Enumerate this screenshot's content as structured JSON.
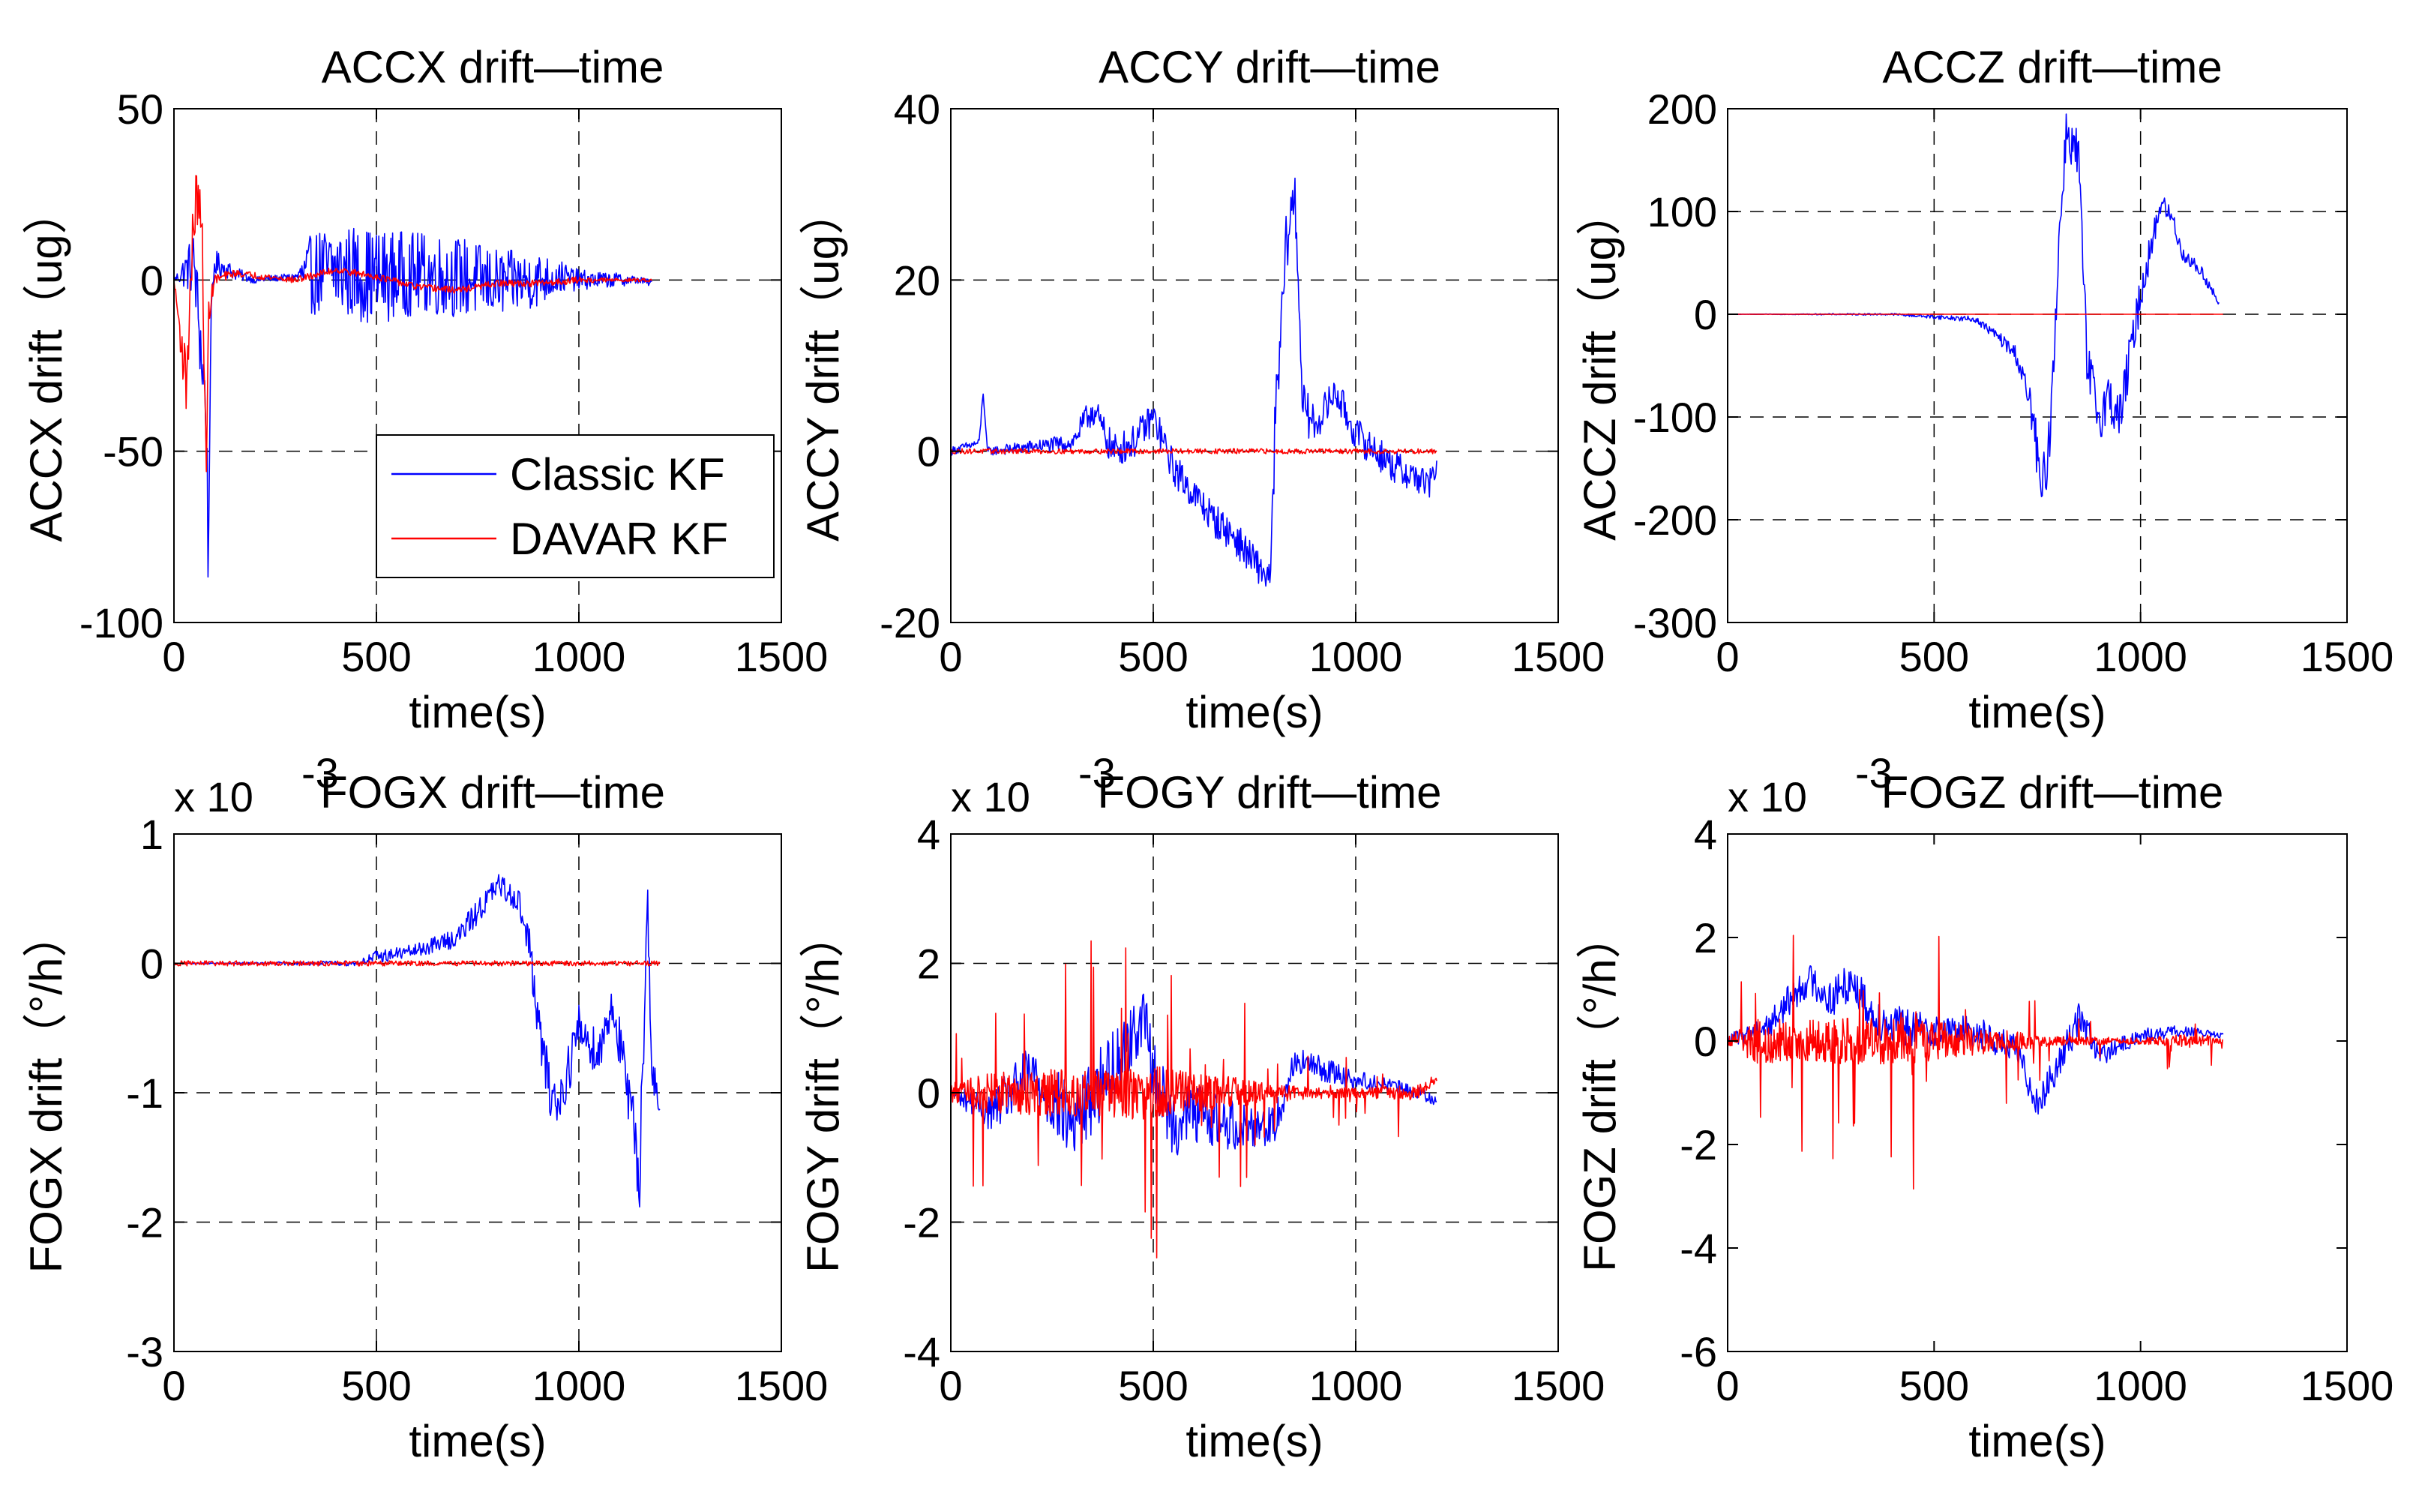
{
  "chart_data": [
    {
      "type": "line",
      "id": "accx",
      "title": "ACCX drift—time",
      "xlabel": "time(s)",
      "ylabel": "ACCX drift（ug）",
      "xlim": [
        0,
        1500
      ],
      "ylim": [
        -100,
        50
      ],
      "xticks": [
        0,
        500,
        1000,
        1500
      ],
      "xtick_labels": [
        "0",
        "500",
        "1000",
        "1500"
      ],
      "yticks": [
        -100,
        -50,
        0,
        50
      ],
      "ytick_labels": [
        "-100",
        "-50",
        "0",
        "50"
      ],
      "grid": true,
      "legend": "lower-right",
      "series": [
        {
          "name": "Classic KF",
          "color": "#0000ff",
          "kind": "noise",
          "x": [
            0,
            50,
            80,
            85,
            90,
            100,
            150,
            200,
            300,
            340,
            400,
            500,
            600,
            700,
            800,
            900,
            950,
            1000,
            1100,
            1150,
            1180
          ],
          "values": [
            0,
            5,
            -40,
            -88,
            -20,
            5,
            2,
            0,
            1,
            2,
            3,
            1,
            2,
            1,
            -1,
            0,
            1,
            0,
            0,
            0,
            -1
          ],
          "amp": [
            0,
            10,
            15,
            10,
            8,
            4,
            2,
            1,
            1,
            12,
            14,
            14,
            12,
            12,
            10,
            8,
            5,
            3,
            2,
            1,
            1
          ]
        },
        {
          "name": "DAVAR KF",
          "color": "#ff0000",
          "kind": "noise",
          "x": [
            0,
            30,
            50,
            60,
            70,
            80,
            85,
            100,
            150,
            300,
            400,
            500,
            600,
            700,
            800,
            900,
            1000,
            1100,
            1180
          ],
          "values": [
            0,
            -30,
            20,
            25,
            10,
            -60,
            -10,
            0,
            2,
            0,
            3,
            1,
            -2,
            -3,
            -1,
            -1,
            0,
            0,
            0
          ],
          "amp": [
            0,
            10,
            10,
            8,
            8,
            6,
            4,
            2,
            1,
            1,
            1,
            1,
            1,
            1,
            1,
            1,
            1,
            0.5,
            0.5
          ]
        }
      ]
    },
    {
      "type": "line",
      "id": "accy",
      "title": "ACCY drift—time",
      "xlabel": "time(s)",
      "ylabel": "ACCY drift（ug）",
      "xlim": [
        0,
        1500
      ],
      "ylim": [
        -20,
        40
      ],
      "xticks": [
        0,
        500,
        1000,
        1500
      ],
      "xtick_labels": [
        "0",
        "500",
        "1000",
        "1500"
      ],
      "yticks": [
        -20,
        0,
        20,
        40
      ],
      "ytick_labels": [
        "-20",
        "0",
        "20",
        "40"
      ],
      "grid": true,
      "series": [
        {
          "name": "Classic KF",
          "color": "#0000ff",
          "kind": "noise",
          "x": [
            0,
            70,
            80,
            90,
            300,
            350,
            400,
            450,
            500,
            550,
            600,
            650,
            700,
            750,
            790,
            800,
            830,
            850,
            870,
            900,
            950,
            1000,
            1100,
            1150,
            1180,
            1200
          ],
          "values": [
            0,
            1,
            7,
            0,
            1,
            5,
            0,
            1,
            4,
            -2,
            -5,
            -8,
            -10,
            -13,
            -15,
            2,
            25,
            30,
            5,
            3,
            7,
            2,
            -2,
            -3,
            -4,
            -2
          ],
          "amp": [
            0.5,
            0.5,
            0.5,
            0.5,
            1,
            2,
            2,
            2,
            2,
            2,
            2,
            2,
            2,
            2,
            2,
            4,
            4,
            3,
            3,
            2,
            2,
            2,
            2,
            2,
            2,
            1
          ]
        },
        {
          "name": "DAVAR KF",
          "color": "#ff0000",
          "kind": "noise",
          "x": [
            0,
            1200
          ],
          "values": [
            0,
            0
          ],
          "amp": [
            0.3,
            0.3
          ]
        }
      ]
    },
    {
      "type": "line",
      "id": "accz",
      "title": "ACCZ drift—time",
      "xlabel": "time(s)",
      "ylabel": "ACCZ drift（ug）",
      "xlim": [
        0,
        1500
      ],
      "ylim": [
        -300,
        200
      ],
      "xticks": [
        0,
        500,
        1000,
        1500
      ],
      "xtick_labels": [
        "0",
        "500",
        "1000",
        "1500"
      ],
      "yticks": [
        -300,
        -200,
        -100,
        0,
        100,
        200
      ],
      "ytick_labels": [
        "-300",
        "-200",
        "-100",
        "0",
        "100",
        "200"
      ],
      "grid": true,
      "series": [
        {
          "name": "Classic KF",
          "color": "#0000ff",
          "kind": "noise",
          "x": [
            0,
            400,
            600,
            650,
            700,
            740,
            760,
            780,
            800,
            820,
            850,
            870,
            900,
            920,
            950,
            1000,
            1050,
            1080,
            1100,
            1150,
            1190
          ],
          "values": [
            0,
            0,
            -5,
            -20,
            -40,
            -100,
            -180,
            -120,
            50,
            180,
            150,
            -50,
            -100,
            -80,
            -100,
            20,
            110,
            90,
            60,
            40,
            10
          ],
          "amp": [
            0,
            1,
            3,
            5,
            10,
            20,
            30,
            25,
            30,
            20,
            30,
            30,
            25,
            25,
            25,
            20,
            10,
            10,
            8,
            6,
            4
          ]
        },
        {
          "name": "DAVAR KF",
          "color": "#ff0000",
          "kind": "noise",
          "x": [
            0,
            1200
          ],
          "values": [
            0,
            0
          ],
          "amp": [
            0,
            0
          ]
        }
      ]
    },
    {
      "type": "line",
      "id": "fogx",
      "title": "FOGX drift—time",
      "xlabel": "time(s)",
      "ylabel": "FOGX drift（°/h）",
      "scale_label": "x 10",
      "scale_exp": "-3",
      "xlim": [
        0,
        1500
      ],
      "ylim": [
        -3,
        1
      ],
      "xticks": [
        0,
        500,
        1000,
        1500
      ],
      "xtick_labels": [
        "0",
        "500",
        "1000",
        "1500"
      ],
      "yticks": [
        -3,
        -2,
        -1,
        0,
        1
      ],
      "ytick_labels": [
        "-3",
        "-2",
        "-1",
        "0",
        "1"
      ],
      "grid": true,
      "series": [
        {
          "name": "Classic KF",
          "color": "#0000ff",
          "kind": "noise",
          "x": [
            0,
            450,
            500,
            600,
            700,
            750,
            800,
            850,
            880,
            900,
            930,
            950,
            1000,
            1050,
            1080,
            1100,
            1150,
            1170,
            1180,
            1200
          ],
          "values": [
            0,
            0,
            0.05,
            0.1,
            0.2,
            0.4,
            0.6,
            0.5,
            0.1,
            -0.5,
            -1.0,
            -1.1,
            -0.5,
            -0.7,
            -0.3,
            -0.6,
            -1.6,
            0.5,
            -0.8,
            -1.2
          ],
          "amp": [
            0,
            0.02,
            0.05,
            0.05,
            0.08,
            0.1,
            0.1,
            0.1,
            0.15,
            0.2,
            0.2,
            0.2,
            0.2,
            0.2,
            0.2,
            0.2,
            0.3,
            0.2,
            0.2,
            0.1
          ]
        },
        {
          "name": "DAVAR KF",
          "color": "#ff0000",
          "kind": "noise",
          "x": [
            0,
            1200
          ],
          "values": [
            0,
            0
          ],
          "amp": [
            0.02,
            0.02
          ]
        }
      ]
    },
    {
      "type": "line",
      "id": "fogy",
      "title": "FOGY drift—time",
      "xlabel": "time(s)",
      "ylabel": "FOGY drift（°/h）",
      "scale_label": "x 10",
      "scale_exp": "-3",
      "xlim": [
        0,
        1500
      ],
      "ylim": [
        -4,
        4
      ],
      "xticks": [
        0,
        500,
        1000,
        1500
      ],
      "xtick_labels": [
        "0",
        "500",
        "1000",
        "1500"
      ],
      "yticks": [
        -4,
        -2,
        0,
        2,
        4
      ],
      "ytick_labels": [
        "-4",
        "-2",
        "0",
        "2",
        "4"
      ],
      "grid": true,
      "series": [
        {
          "name": "Classic KF",
          "color": "#0000ff",
          "kind": "noise",
          "x": [
            0,
            100,
            200,
            300,
            400,
            480,
            500,
            550,
            600,
            700,
            800,
            850,
            900,
            1000,
            1100,
            1200
          ],
          "values": [
            0,
            -0.3,
            0.3,
            -0.5,
            0.4,
            1.2,
            0.3,
            -0.5,
            -0.3,
            -0.5,
            -0.5,
            0.5,
            0.4,
            0.2,
            0.1,
            -0.1
          ],
          "amp": [
            0.1,
            0.3,
            0.5,
            0.6,
            0.6,
            0.4,
            0.5,
            0.5,
            0.5,
            0.4,
            0.3,
            0.2,
            0.2,
            0.15,
            0.1,
            0.1
          ]
        },
        {
          "name": "DAVAR KF",
          "color": "#ff0000",
          "kind": "spiky",
          "x": [
            0,
            80,
            200,
            400,
            500,
            600,
            700,
            800,
            1000,
            1150,
            1200
          ],
          "values": [
            0,
            0,
            0,
            0,
            0,
            0,
            0,
            0,
            0,
            0,
            0.2
          ],
          "amp": [
            0.5,
            1.0,
            1.2,
            1.3,
            1.4,
            1.0,
            0.8,
            0.4,
            0.25,
            0.4,
            0.1
          ]
        }
      ]
    },
    {
      "type": "line",
      "id": "fogz",
      "title": "FOGZ drift—time",
      "xlabel": "time(s)",
      "ylabel": "FOGZ drift（°/h）",
      "scale_label": "x 10",
      "scale_exp": "-3",
      "xlim": [
        0,
        1500
      ],
      "ylim": [
        -6,
        4
      ],
      "xticks": [
        0,
        500,
        1000,
        1500
      ],
      "xtick_labels": [
        "0",
        "500",
        "1000",
        "1500"
      ],
      "yticks": [
        -6,
        -4,
        -2,
        0,
        2,
        4
      ],
      "ytick_labels": [
        "-6",
        "-4",
        "-2",
        "0",
        "2",
        "4"
      ],
      "grid": false,
      "series": [
        {
          "name": "Classic KF",
          "color": "#0000ff",
          "kind": "noise",
          "x": [
            0,
            100,
            150,
            200,
            250,
            300,
            350,
            400,
            500,
            600,
            700,
            750,
            800,
            850,
            900,
            1000,
            1100,
            1200
          ],
          "values": [
            0,
            0.3,
            0.8,
            1.2,
            0.8,
            1.2,
            0.5,
            0.3,
            0.2,
            0.2,
            -0.2,
            -1.2,
            -0.5,
            0.5,
            -0.3,
            0.1,
            0.2,
            0.1
          ],
          "amp": [
            0.1,
            0.3,
            0.3,
            0.3,
            0.4,
            0.4,
            0.4,
            0.4,
            0.3,
            0.3,
            0.3,
            0.3,
            0.3,
            0.4,
            0.2,
            0.15,
            0.1,
            0.05
          ]
        },
        {
          "name": "DAVAR KF",
          "color": "#ff0000",
          "kind": "spiky",
          "x": [
            0,
            80,
            150,
            300,
            450,
            600,
            800,
            1000,
            1150,
            1200
          ],
          "values": [
            0,
            0,
            0,
            0,
            0,
            0,
            0,
            0,
            0,
            0
          ],
          "amp": [
            0.3,
            1.6,
            1.3,
            1.5,
            1.5,
            0.9,
            0.3,
            0.2,
            0.5,
            0.1
          ]
        }
      ]
    }
  ],
  "legend": {
    "classic_label": "Classic KF",
    "davar_label": "DAVAR KF",
    "classic_color": "#0000ff",
    "davar_color": "#ff0000"
  }
}
